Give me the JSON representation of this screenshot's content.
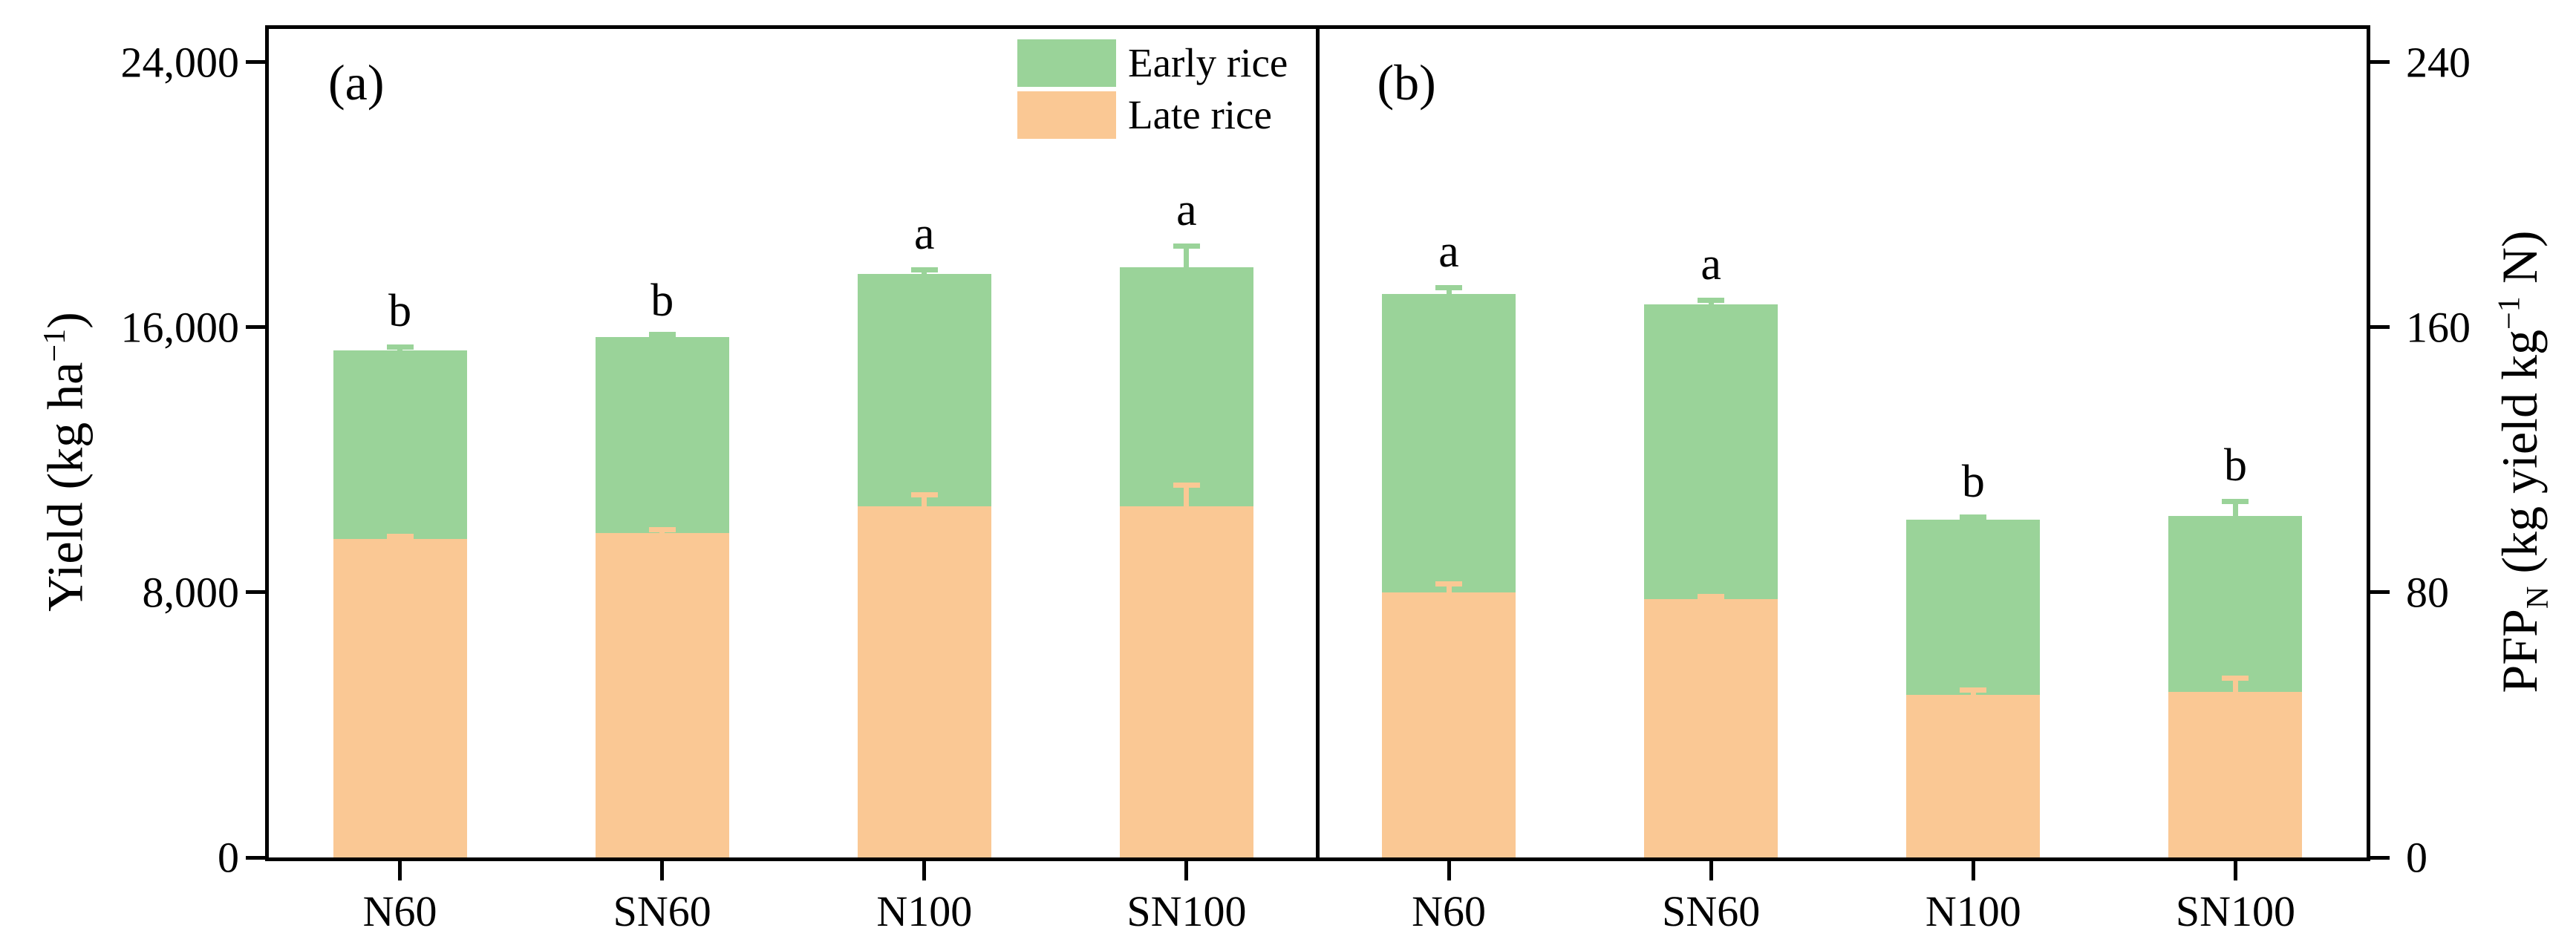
{
  "legend": {
    "items": [
      {
        "label": "Early rice",
        "color": "#9ad399"
      },
      {
        "label": "Late rice",
        "color": "#fac894"
      }
    ]
  },
  "axes": {
    "left": {
      "pre": "Yield (kg ha",
      "sup": "−1",
      "tail": ")"
    },
    "right": {
      "pre": "PFP",
      "sub": "N",
      "mid": " (kg yield kg",
      "sup": "−1",
      "tail": " N)"
    }
  },
  "chart_data": [
    {
      "type": "bar",
      "stacked": true,
      "panel_label": "(a)",
      "ylabel": "Yield (kg ha−1)",
      "categories": [
        "N60",
        "SN60",
        "N100",
        "SN100"
      ],
      "series": [
        {
          "name": "Late rice",
          "color": "#fac894",
          "values": [
            9600,
            9800,
            10600,
            10600
          ],
          "errors": [
            160,
            180,
            420,
            710
          ]
        },
        {
          "name": "Early rice",
          "color": "#9ad399",
          "values": [
            5700,
            5900,
            7000,
            7200
          ]
        }
      ],
      "totals": [
        15300,
        15700,
        17600,
        17800
      ],
      "total_errors": [
        180,
        100,
        200,
        730
      ],
      "sig_letters": [
        "b",
        "b",
        "a",
        "a"
      ],
      "ylim": [
        0,
        25000
      ],
      "yticks": [
        0,
        8000,
        16000,
        24000
      ],
      "ytick_labels": [
        "0",
        "8,000",
        "16,000",
        "24,000"
      ],
      "legend_position": "top-right-of-panel",
      "grid": false
    },
    {
      "type": "bar",
      "stacked": true,
      "panel_label": "(b)",
      "ylabel": "PFPN (kg yield kg−1 N)",
      "categories": [
        "N60",
        "SN60",
        "N100",
        "SN100"
      ],
      "series": [
        {
          "name": "Late rice",
          "color": "#fac894",
          "values": [
            80,
            78,
            49,
            50
          ],
          "errors": [
            3.3,
            1.6,
            2.2,
            4.9
          ]
        },
        {
          "name": "Early rice",
          "color": "#9ad399",
          "values": [
            90,
            89,
            53,
            53
          ]
        }
      ],
      "totals": [
        170,
        167,
        102,
        103
      ],
      "total_errors": [
        2.7,
        2.0,
        1.3,
        5.1
      ],
      "sig_letters": [
        "a",
        "a",
        "b",
        "b"
      ],
      "ylim": [
        0,
        250
      ],
      "yticks": [
        0,
        80,
        160,
        240
      ],
      "ytick_labels": [
        "0",
        "80",
        "160",
        "240"
      ],
      "grid": false
    }
  ]
}
